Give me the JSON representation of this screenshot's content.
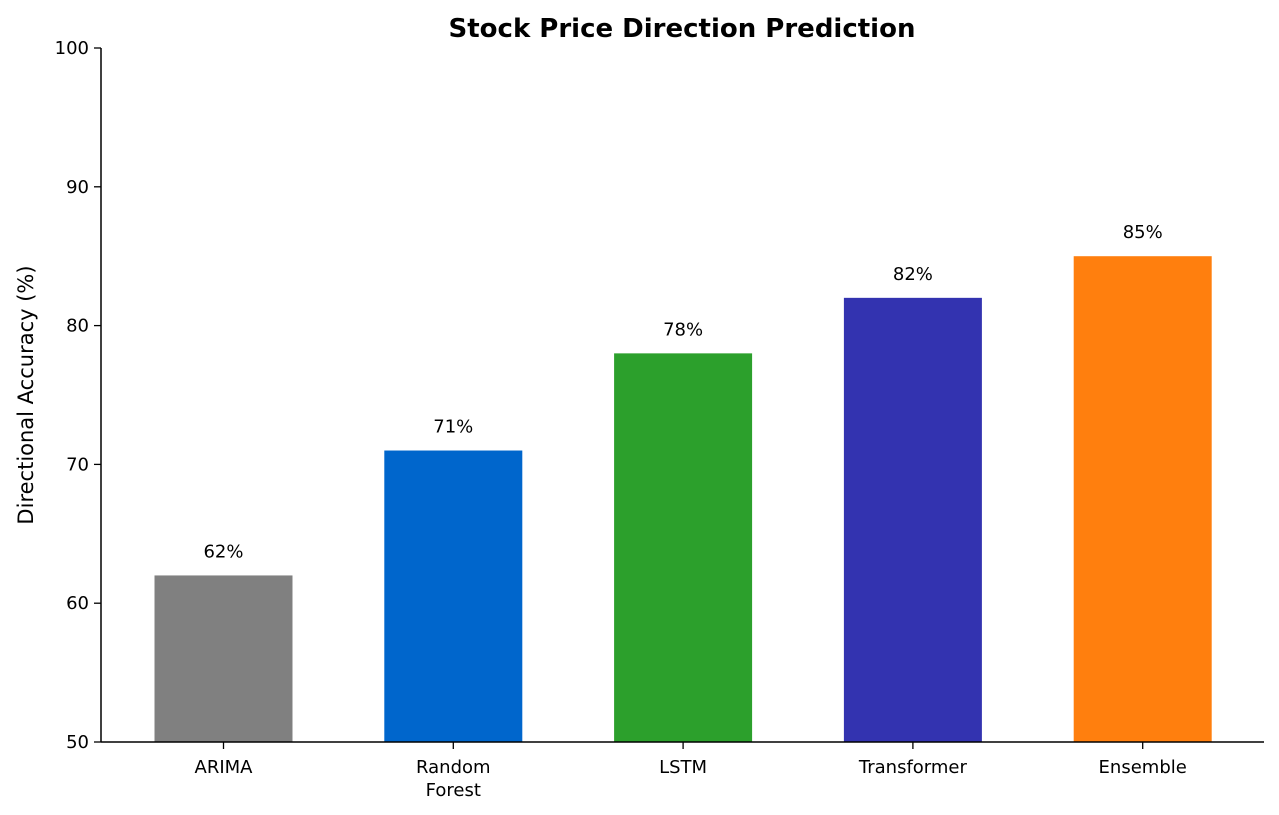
{
  "chart_data": {
    "type": "bar",
    "title": "Stock Price Direction Prediction",
    "xlabel": "",
    "ylabel": "Directional Accuracy (%)",
    "ylim": [
      50,
      100
    ],
    "yticks": [
      50,
      60,
      70,
      80,
      90,
      100
    ],
    "grid": false,
    "categories": [
      "ARIMA",
      "Random\nForest",
      "LSTM",
      "Transformer",
      "Ensemble"
    ],
    "values": [
      62,
      71,
      78,
      82,
      85
    ],
    "data_labels": [
      "62%",
      "71%",
      "78%",
      "82%",
      "85%"
    ],
    "colors": [
      "#808080",
      "#0066cc",
      "#2ca02c",
      "#3333b0",
      "#ff7f0e"
    ]
  }
}
